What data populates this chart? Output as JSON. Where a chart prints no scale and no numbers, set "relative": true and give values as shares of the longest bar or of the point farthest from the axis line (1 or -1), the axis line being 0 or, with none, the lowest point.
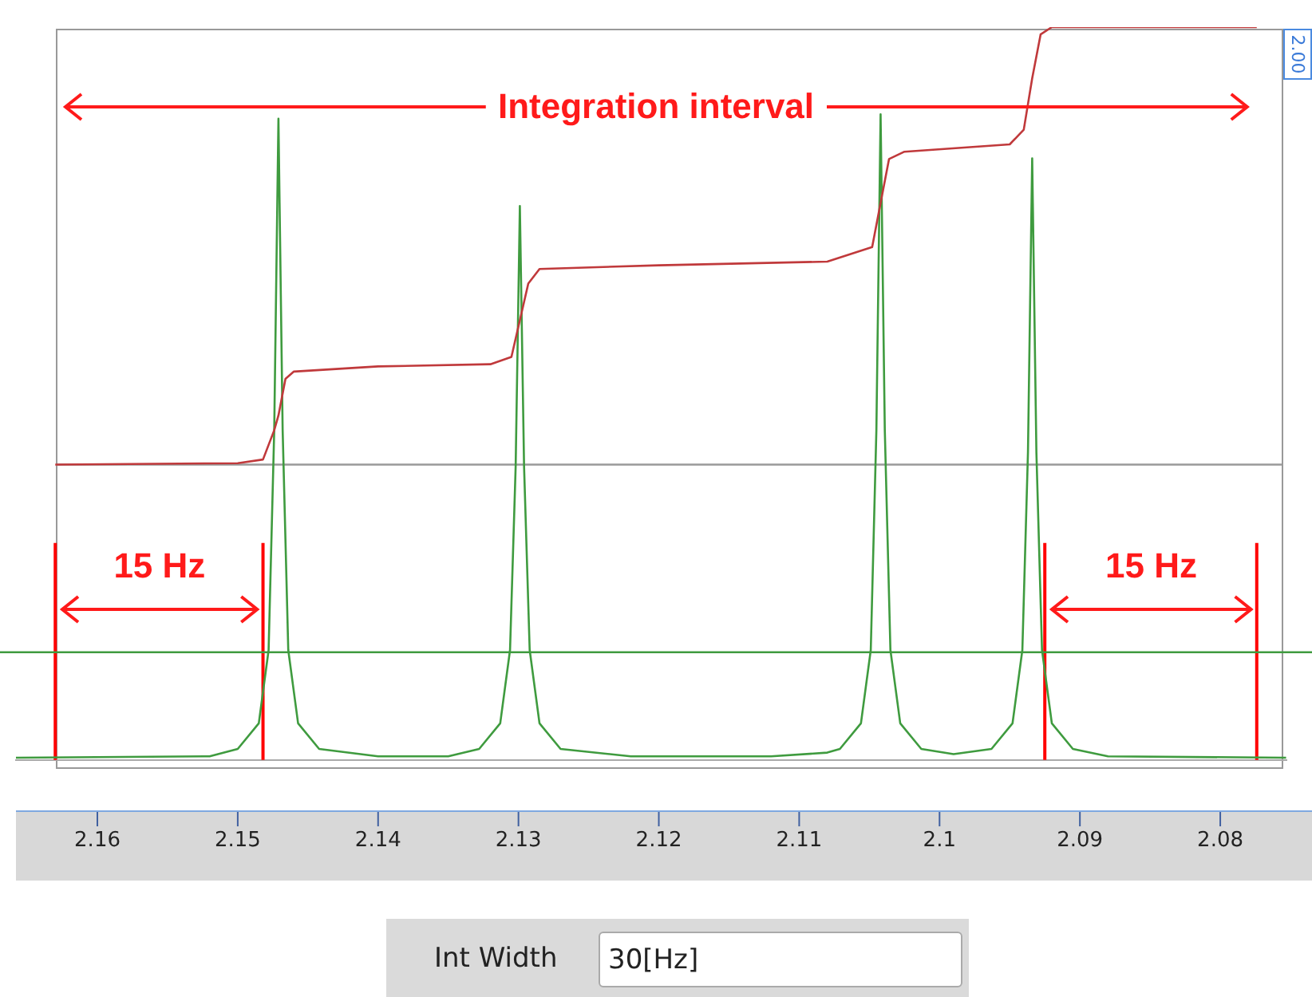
{
  "chart_data": {
    "type": "line",
    "relative": true,
    "marker": "none",
    "xlim": [
      2.1658,
      2.0753
    ],
    "xticks": [
      2.16,
      2.15,
      2.14,
      2.13,
      2.12,
      2.11,
      2.1,
      2.09,
      2.08
    ],
    "series": [
      {
        "type": "line",
        "color": "#3f9b3f",
        "x": [
          2.1658,
          2.152,
          2.15,
          2.1485,
          2.1478,
          2.1474,
          2.1471,
          2.1468,
          2.1464,
          2.1457,
          2.1442,
          2.14,
          2.135,
          2.1328,
          2.1313,
          2.1306,
          2.1302,
          2.1299,
          2.1296,
          2.1292,
          2.1285,
          2.127,
          2.122,
          2.112,
          2.108,
          2.1071,
          2.1056,
          2.1049,
          2.1045,
          2.1042,
          2.1039,
          2.1035,
          2.1028,
          2.1013,
          2.099,
          2.0963,
          2.0948,
          2.0941,
          2.0937,
          2.0934,
          2.0931,
          2.0927,
          2.092,
          2.0905,
          2.088,
          2.0753
        ],
        "values": [
          0.003,
          0.005,
          0.015,
          0.05,
          0.15,
          0.45,
          0.875,
          0.45,
          0.15,
          0.05,
          0.015,
          0.005,
          0.005,
          0.015,
          0.05,
          0.15,
          0.4,
          0.756,
          0.4,
          0.15,
          0.05,
          0.015,
          0.005,
          0.005,
          0.01,
          0.015,
          0.05,
          0.15,
          0.45,
          0.881,
          0.45,
          0.15,
          0.05,
          0.015,
          0.008,
          0.015,
          0.05,
          0.15,
          0.42,
          0.821,
          0.42,
          0.15,
          0.05,
          0.015,
          0.005,
          0.003
        ]
      },
      {
        "type": "line",
        "color": "#c0393b",
        "x": [
          2.163,
          2.15,
          2.1482,
          2.1474,
          2.1471,
          2.1466,
          2.146,
          2.14,
          2.132,
          2.1305,
          2.1299,
          2.1293,
          2.1285,
          2.12,
          2.108,
          2.1048,
          2.1042,
          2.1036,
          2.1025,
          2.095,
          2.094,
          2.0934,
          2.0928,
          2.092,
          2.0774
        ],
        "values": [
          0.403,
          0.405,
          0.41,
          0.45,
          0.47,
          0.52,
          0.53,
          0.537,
          0.54,
          0.55,
          0.6,
          0.65,
          0.67,
          0.675,
          0.68,
          0.7,
          0.76,
          0.82,
          0.83,
          0.84,
          0.86,
          0.93,
          0.99,
          1.0,
          1.0
        ]
      }
    ],
    "ref_lines": [
      {
        "axis": "x",
        "value": 2.163,
        "color": "#ff0000"
      },
      {
        "axis": "x",
        "value": 2.1482,
        "color": "#ff0000"
      },
      {
        "axis": "x",
        "value": 2.0925,
        "color": "#ff0000"
      },
      {
        "axis": "x",
        "value": 2.0774,
        "color": "#ff0000"
      },
      {
        "axis": "y",
        "value": 0.147,
        "color": "#3f9b3f"
      },
      {
        "axis": "y",
        "value": 0.403,
        "color": "#999999"
      }
    ],
    "annotations": [
      "Integration interval",
      "15 Hz",
      "15 Hz",
      "2.00",
      "Int Width",
      "30[Hz]"
    ]
  }
}
